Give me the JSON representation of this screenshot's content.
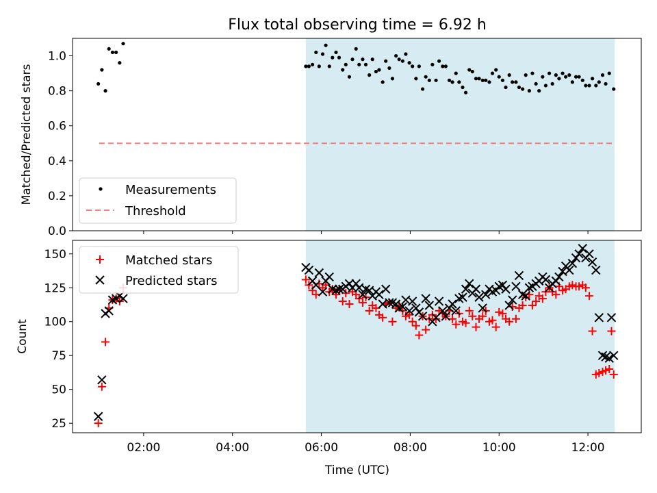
{
  "chart_data": [
    {
      "type": "scatter",
      "title": "Flux total observing time = 6.92 h",
      "xlabel": "",
      "ylabel": "Matched/Predicted stars",
      "xlim": [
        0.4,
        13.2
      ],
      "ylim": [
        0.0,
        1.1
      ],
      "yticks": [
        "0.0",
        "0.2",
        "0.4",
        "0.6",
        "0.8",
        "1.0"
      ],
      "shaded_span": [
        5.65,
        12.6
      ],
      "shaded_color": "#add8e6",
      "threshold": {
        "name": "Threshold",
        "value": 0.5,
        "x_range": [
          1.0,
          12.6
        ],
        "color": "#f08080"
      },
      "series": [
        {
          "name": "Measurements",
          "color": "#000000",
          "x": [
            0.98,
            1.06,
            1.14,
            1.22,
            1.3,
            1.38,
            1.46,
            1.54,
            5.65,
            5.72,
            5.8,
            5.88,
            5.95,
            6.03,
            6.1,
            6.18,
            6.25,
            6.33,
            6.4,
            6.48,
            6.55,
            6.63,
            6.7,
            6.78,
            6.85,
            6.93,
            7.0,
            7.08,
            7.15,
            7.23,
            7.3,
            7.38,
            7.45,
            7.53,
            7.6,
            7.68,
            7.75,
            7.83,
            7.9,
            7.98,
            8.05,
            8.13,
            8.2,
            8.28,
            8.35,
            8.43,
            8.5,
            8.58,
            8.65,
            8.73,
            8.8,
            8.88,
            8.95,
            9.03,
            9.1,
            9.18,
            9.25,
            9.33,
            9.4,
            9.48,
            9.55,
            9.63,
            9.7,
            9.78,
            9.85,
            9.93,
            10.0,
            10.08,
            10.15,
            10.23,
            10.3,
            10.38,
            10.45,
            10.53,
            10.6,
            10.68,
            10.75,
            10.83,
            10.9,
            10.98,
            11.05,
            11.13,
            11.2,
            11.28,
            11.35,
            11.43,
            11.5,
            11.58,
            11.65,
            11.73,
            11.8,
            11.88,
            11.95,
            12.03,
            12.1,
            12.18,
            12.25,
            12.33,
            12.4,
            12.48,
            12.58
          ],
          "y": [
            0.84,
            0.92,
            0.8,
            1.04,
            1.02,
            1.02,
            0.96,
            1.07,
            0.94,
            0.94,
            0.95,
            1.02,
            0.94,
            1.01,
            1.06,
            0.94,
            0.99,
            1.02,
            0.99,
            0.92,
            0.95,
            0.88,
            0.98,
            1.04,
            0.95,
            0.98,
            0.95,
            0.89,
            0.98,
            0.91,
            0.92,
            0.85,
            0.97,
            0.93,
            0.87,
            1.0,
            0.98,
            0.97,
            1.01,
            0.96,
            0.94,
            0.87,
            0.94,
            0.81,
            0.88,
            0.86,
            0.95,
            0.86,
            0.97,
            0.94,
            0.94,
            0.86,
            0.85,
            0.9,
            0.85,
            0.82,
            0.79,
            0.92,
            0.91,
            0.87,
            0.87,
            0.86,
            0.86,
            0.85,
            0.9,
            0.92,
            0.88,
            0.86,
            0.82,
            0.89,
            0.85,
            0.85,
            0.82,
            0.81,
            0.89,
            0.8,
            0.9,
            0.84,
            0.8,
            0.88,
            0.83,
            0.9,
            0.84,
            0.89,
            0.87,
            0.9,
            0.88,
            0.89,
            0.85,
            0.88,
            0.88,
            0.86,
            0.83,
            0.83,
            0.87,
            0.83,
            0.85,
            0.89,
            0.84,
            0.9,
            0.81
          ]
        }
      ],
      "legend": {
        "placement": "lower-left",
        "entries": [
          "Measurements",
          "Threshold"
        ]
      }
    },
    {
      "type": "scatter",
      "title": "",
      "xlabel": "Time (UTC)",
      "ylabel": "Count",
      "xlim": [
        0.4,
        13.2
      ],
      "ylim": [
        18,
        160
      ],
      "yticks": [
        "25",
        "50",
        "75",
        "100",
        "125",
        "150"
      ],
      "xticks": [
        {
          "value": 2,
          "label": "02:00"
        },
        {
          "value": 4,
          "label": "04:00"
        },
        {
          "value": 6,
          "label": "06:00"
        },
        {
          "value": 8,
          "label": "08:00"
        },
        {
          "value": 10,
          "label": "10:00"
        },
        {
          "value": 12,
          "label": "12:00"
        }
      ],
      "shaded_span": [
        5.65,
        12.6
      ],
      "shaded_color": "#add8e6",
      "series": [
        {
          "name": "Matched stars",
          "marker": "+",
          "color": "#ff0000",
          "x": [
            0.98,
            1.06,
            1.14,
            1.22,
            1.3,
            1.38,
            1.46,
            1.54,
            5.65,
            5.72,
            5.8,
            5.88,
            5.95,
            6.03,
            6.1,
            6.18,
            6.25,
            6.33,
            6.4,
            6.48,
            6.55,
            6.63,
            6.7,
            6.78,
            6.85,
            6.93,
            7.0,
            7.08,
            7.15,
            7.23,
            7.3,
            7.38,
            7.45,
            7.53,
            7.6,
            7.68,
            7.75,
            7.83,
            7.9,
            7.98,
            8.05,
            8.13,
            8.2,
            8.28,
            8.35,
            8.43,
            8.5,
            8.58,
            8.65,
            8.73,
            8.8,
            8.88,
            8.95,
            9.03,
            9.1,
            9.18,
            9.25,
            9.33,
            9.4,
            9.48,
            9.55,
            9.63,
            9.7,
            9.78,
            9.85,
            9.93,
            10.0,
            10.08,
            10.15,
            10.23,
            10.3,
            10.38,
            10.45,
            10.53,
            10.6,
            10.68,
            10.75,
            10.83,
            10.9,
            10.98,
            11.05,
            11.13,
            11.2,
            11.28,
            11.35,
            11.43,
            11.5,
            11.58,
            11.65,
            11.73,
            11.8,
            11.88,
            11.95,
            12.03,
            12.1,
            12.18,
            12.25,
            12.33,
            12.4,
            12.48,
            12.53,
            12.58
          ],
          "y": [
            25,
            52,
            85,
            110,
            116,
            117,
            115,
            125,
            131,
            127,
            123,
            120,
            128,
            125,
            127,
            122,
            124,
            120,
            124,
            115,
            121,
            113,
            122,
            120,
            117,
            114,
            118,
            108,
            112,
            110,
            105,
            103,
            113,
            114,
            100,
            110,
            112,
            108,
            104,
            105,
            100,
            97,
            90,
            104,
            94,
            102,
            105,
            102,
            108,
            106,
            104,
            108,
            102,
            98,
            106,
            100,
            99,
            108,
            104,
            96,
            102,
            104,
            108,
            100,
            101,
            96,
            107,
            106,
            102,
            100,
            111,
            102,
            110,
            112,
            118,
            120,
            112,
            115,
            119,
            117,
            122,
            125,
            122,
            120,
            126,
            123,
            124,
            126,
            127,
            126,
            126,
            127,
            125,
            119,
            93,
            61,
            62,
            63,
            64,
            65,
            93,
            61
          ],
          "y_note": "last points"
        },
        {
          "name": "Predicted stars",
          "marker": "x",
          "color": "#000000",
          "x": [
            0.98,
            1.06,
            1.14,
            1.22,
            1.3,
            1.38,
            1.46,
            1.54,
            5.65,
            5.72,
            5.8,
            5.88,
            5.95,
            6.03,
            6.1,
            6.18,
            6.25,
            6.33,
            6.4,
            6.48,
            6.55,
            6.63,
            6.7,
            6.78,
            6.85,
            6.93,
            7.0,
            7.08,
            7.15,
            7.23,
            7.3,
            7.38,
            7.45,
            7.53,
            7.6,
            7.68,
            7.75,
            7.83,
            7.9,
            7.98,
            8.05,
            8.13,
            8.2,
            8.28,
            8.35,
            8.43,
            8.5,
            8.58,
            8.65,
            8.73,
            8.8,
            8.88,
            8.95,
            9.03,
            9.1,
            9.18,
            9.25,
            9.33,
            9.4,
            9.48,
            9.55,
            9.63,
            9.7,
            9.78,
            9.85,
            9.93,
            10.0,
            10.08,
            10.15,
            10.23,
            10.3,
            10.38,
            10.45,
            10.53,
            10.6,
            10.68,
            10.75,
            10.83,
            10.9,
            10.98,
            11.05,
            11.13,
            11.2,
            11.28,
            11.35,
            11.43,
            11.5,
            11.58,
            11.65,
            11.73,
            11.8,
            11.88,
            11.95,
            12.03,
            12.1,
            12.18,
            12.25,
            12.33,
            12.4,
            12.48,
            12.53,
            12.58
          ],
          "y": [
            30,
            57,
            106,
            108,
            116,
            117,
            119,
            117,
            140,
            138,
            130,
            127,
            136,
            122,
            130,
            133,
            124,
            123,
            124,
            124,
            126,
            128,
            125,
            128,
            125,
            120,
            124,
            123,
            119,
            122,
            120,
            113,
            124,
            114,
            114,
            113,
            110,
            111,
            116,
            108,
            115,
            110,
            107,
            104,
            117,
            112,
            100,
            103,
            115,
            108,
            104,
            110,
            113,
            108,
            117,
            118,
            124,
            128,
            121,
            124,
            118,
            110,
            120,
            124,
            122,
            123,
            126,
            127,
            124,
            112,
            116,
            126,
            134,
            120,
            119,
            125,
            126,
            128,
            130,
            133,
            131,
            125,
            128,
            130,
            133,
            137,
            141,
            138,
            143,
            147,
            150,
            154,
            147,
            150,
            144,
            138,
            103,
            75,
            74,
            73,
            103,
            75
          ]
        }
      ],
      "legend": {
        "placement": "upper-left",
        "entries": [
          "Matched stars",
          "Predicted stars"
        ]
      }
    }
  ]
}
